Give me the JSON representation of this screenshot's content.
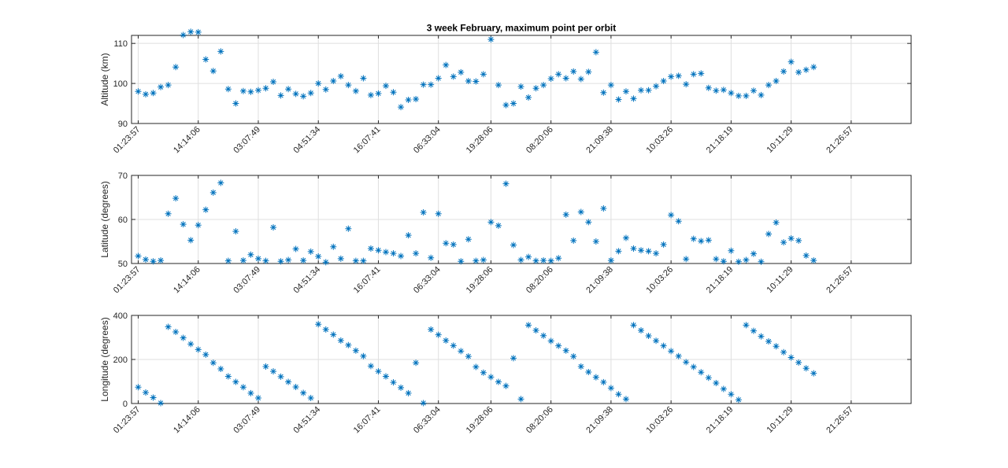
{
  "title": "3 week February, maximum point per orbit",
  "chart_data": [
    {
      "type": "scatter",
      "title": "3 week February, maximum point per orbit",
      "ylabel": "Altitude (km)",
      "xlabel": "",
      "ylim": [
        90,
        112
      ],
      "yticks": [
        90,
        100,
        110
      ],
      "xticklabels": [
        "01:23:57",
        "14:14:06",
        "03:07:49",
        "04:51:34",
        "16:07:41",
        "06:33:04",
        "19:28:06",
        "08:20:06",
        "21:09:38",
        "10:03:26",
        "21:18:19",
        "10:11:29",
        "21:26:57"
      ],
      "xtick_index": [
        0,
        8,
        16,
        24,
        32,
        40,
        47,
        55,
        63,
        71,
        79,
        87,
        95
      ],
      "grid": true,
      "marker": "asterisk",
      "color": "#0072bd",
      "values": [
        98,
        97.3,
        97.6,
        99.1,
        99.6,
        104.1,
        112.1,
        112.9,
        112.8,
        106,
        103.1,
        108,
        98.6,
        95,
        98.1,
        97.9,
        98.3,
        98.8,
        100.4,
        97,
        98.6,
        97.4,
        96.8,
        97.6,
        100,
        98.5,
        100.6,
        101.8,
        99.6,
        98.1,
        101.3,
        97.1,
        97.5,
        99.4,
        97.8,
        94.1,
        95.9,
        96.1,
        99.7,
        99.7,
        101.3,
        104.6,
        101.7,
        102.8,
        100.6,
        100.5,
        102.3,
        111,
        99.6,
        94.6,
        95,
        99.2,
        96.5,
        98.8,
        99.6,
        101.2,
        102.3,
        101.3,
        103,
        101.1,
        102.9,
        107.8,
        97.7,
        99.6,
        96,
        98,
        96.2,
        98.3,
        98.3,
        99.3,
        100.6,
        101.7,
        101.9,
        99.8,
        102.3,
        102.5,
        98.9,
        98.2,
        98.4,
        97.6,
        96.9,
        96.9,
        98.2,
        97.1,
        99.6,
        100.6,
        103,
        105.4,
        102.8,
        103.4,
        104.1
      ]
    },
    {
      "type": "scatter",
      "ylabel": "Latitude (degrees)",
      "xlabel": "",
      "ylim": [
        50,
        70
      ],
      "yticks": [
        50,
        60,
        70
      ],
      "xticklabels": [
        "01:23:57",
        "14:14:06",
        "03:07:49",
        "04:51:34",
        "16:07:41",
        "06:33:04",
        "19:28:06",
        "08:20:06",
        "21:09:38",
        "10:03:26",
        "21:18:19",
        "10:11:29",
        "21:26:57"
      ],
      "grid": true,
      "marker": "asterisk",
      "color": "#0072bd",
      "values": [
        51.7,
        50.9,
        50.5,
        50.7,
        61.3,
        64.8,
        58.9,
        55.3,
        58.7,
        62.2,
        66.1,
        68.3,
        50.6,
        57.3,
        50.7,
        52,
        51.1,
        50.6,
        58.2,
        50.5,
        50.8,
        53.3,
        50.7,
        52.7,
        51.6,
        50.3,
        53.8,
        51.1,
        57.9,
        50.6,
        50.6,
        53.4,
        53,
        52.6,
        52.3,
        51.7,
        56.4,
        52.3,
        61.6,
        51.3,
        61.3,
        54.6,
        54.3,
        50.5,
        55.5,
        50.6,
        50.8,
        59.4,
        58.6,
        68.1,
        54.2,
        50.8,
        51.5,
        50.6,
        50.7,
        50.6,
        51.2,
        61.1,
        55.2,
        61.7,
        59.4,
        55,
        62.5,
        50.7,
        52.8,
        55.8,
        53.4,
        53,
        52.8,
        52.3,
        54.3,
        61,
        59.6,
        51,
        55.6,
        55.1,
        55.3,
        51,
        50.5,
        52.9,
        50.4,
        50.8,
        52.2,
        50.4,
        56.7,
        59.3,
        54.8,
        55.7,
        55.2,
        51.8,
        50.7
      ]
    },
    {
      "type": "scatter",
      "ylabel": "Longitude (degrees)",
      "xlabel": "",
      "ylim": [
        0,
        400
      ],
      "yticks": [
        0,
        200,
        400
      ],
      "xticklabels": [
        "01:23:57",
        "14:14:06",
        "03:07:49",
        "04:51:34",
        "16:07:41",
        "06:33:04",
        "19:28:06",
        "08:20:06",
        "21:09:38",
        "10:03:26",
        "21:18:19",
        "10:11:29",
        "21:26:57"
      ],
      "grid": true,
      "marker": "asterisk",
      "color": "#0072bd",
      "values": [
        74,
        50,
        27,
        2,
        348,
        325,
        298,
        270,
        245,
        222,
        185,
        157,
        123,
        98,
        74,
        47,
        25,
        168,
        146,
        122,
        98,
        75,
        48,
        25,
        360,
        336,
        313,
        286,
        265,
        240,
        215,
        170,
        146,
        123,
        96,
        72,
        47,
        185,
        2,
        336,
        312,
        286,
        263,
        238,
        214,
        166,
        140,
        120,
        98,
        80,
        206,
        20,
        356,
        332,
        308,
        284,
        262,
        240,
        214,
        168,
        143,
        119,
        97,
        70,
        42,
        20,
        356,
        332,
        307,
        285,
        262,
        238,
        215,
        188,
        166,
        142,
        117,
        93,
        66,
        42,
        17,
        356,
        330,
        305,
        282,
        260,
        233,
        209,
        186,
        160,
        137
      ]
    }
  ]
}
